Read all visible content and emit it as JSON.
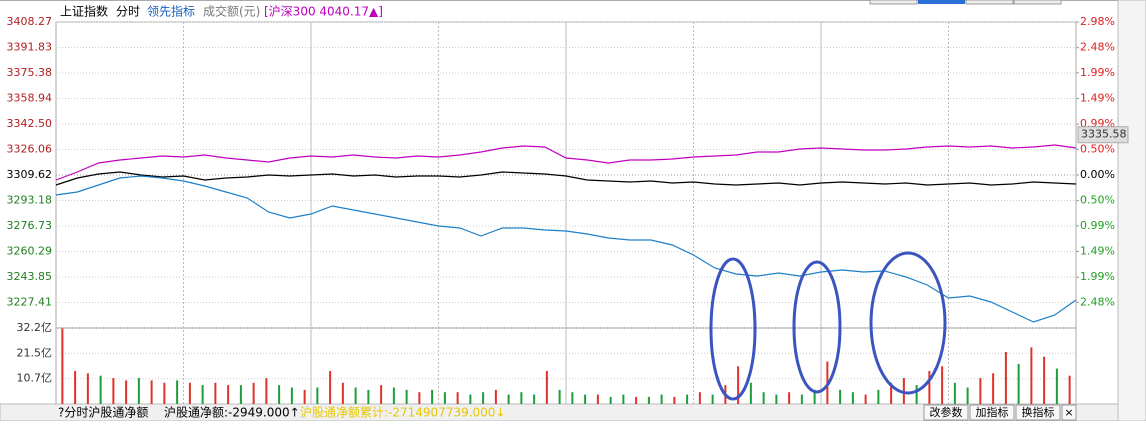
{
  "toolbar": {
    "index": "上证指数",
    "mode": "分时",
    "indicator": "领先指标",
    "volume_unit": "成交额(元)",
    "compare": "[沪深300 4040.17▲]"
  },
  "chart_data": {
    "type": "line",
    "ylim": [
      3210.97,
      3408.27
    ],
    "yticks": [
      3408.27,
      3391.83,
      3375.38,
      3358.94,
      {
        "value": 3342.5,
        "label": "3342.50"
      },
      3326.06,
      3309.62,
      3293.18,
      3276.73,
      3260.29,
      3243.85,
      3227.41
    ],
    "y2lim": [
      -2.98,
      2.98
    ],
    "y2ticks": [
      {
        "value": 2.98,
        "label": "2.98%"
      },
      {
        "value": 2.48,
        "label": "2.48%"
      },
      {
        "value": 1.99,
        "label": "1.99%"
      },
      {
        "value": 1.49,
        "label": "1.49%"
      },
      {
        "value": 0.99,
        "label": "0.99%"
      },
      {
        "value": 0.5,
        "label": "0.50%"
      },
      {
        "value": 0,
        "label": "0.00%"
      },
      {
        "value": -0.5,
        "label": "0.50%"
      },
      {
        "value": -0.99,
        "label": "0.99%"
      },
      {
        "value": -1.49,
        "label": "1.49%"
      },
      {
        "value": -1.99,
        "label": "1.99%"
      },
      {
        "value": -2.48,
        "label": "2.48%"
      }
    ],
    "current_price": 3335.58,
    "grid": true,
    "series": [
      {
        "color": "#c000c0",
        "values": [
          3306.39,
          3311.55,
          3317.35,
          3319.29,
          3320.58,
          3321.87,
          3321.22,
          3322.51,
          3320.58,
          3319.29,
          3318.0,
          3320.58,
          3321.87,
          3321.22,
          3322.51,
          3321.22,
          3320.58,
          3321.87,
          3321.22,
          3322.51,
          3324.45,
          3327.03,
          3328.31,
          3327.67,
          3320.58,
          3319.29,
          3317.35,
          3319.29,
          3319.29,
          3319.93,
          3321.22,
          3321.87,
          3322.51,
          3324.45,
          3324.45,
          3326.38,
          3327.03,
          3326.38,
          3325.74,
          3325.74,
          3326.38,
          3327.67,
          3328.31,
          3327.67,
          3328.31,
          3327.03,
          3327.67,
          3328.96,
          3327.03
        ]
      },
      {
        "color": "#000000",
        "values": [
          3303.17,
          3307.68,
          3310.26,
          3311.55,
          3309.62,
          3308.33,
          3308.97,
          3306.39,
          3307.68,
          3308.33,
          3309.62,
          3308.97,
          3309.62,
          3310.26,
          3308.97,
          3309.62,
          3308.33,
          3308.97,
          3308.97,
          3308.33,
          3309.62,
          3311.55,
          3310.91,
          3310.26,
          3308.97,
          3306.39,
          3305.75,
          3305.1,
          3305.75,
          3304.46,
          3305.1,
          3303.81,
          3303.17,
          3303.81,
          3304.46,
          3303.17,
          3304.46,
          3305.1,
          3304.46,
          3303.81,
          3304.46,
          3303.17,
          3303.81,
          3304.46,
          3303.17,
          3303.81,
          3305.1,
          3304.46,
          3303.81
        ]
      },
      {
        "color": "#1e7fc8",
        "values": [
          3296.72,
          3298.65,
          3303.17,
          3307.68,
          3308.97,
          3307.68,
          3305.75,
          3302.52,
          3298.65,
          3294.79,
          3285.76,
          3281.89,
          3284.47,
          3289.63,
          3287.05,
          3284.47,
          3281.89,
          3279.31,
          3276.73,
          3275.44,
          3270.28,
          3275.44,
          3275.44,
          3274.15,
          3273.51,
          3271.57,
          3268.99,
          3267.7,
          3267.7,
          3264.48,
          3258.03,
          3249.65,
          3245.78,
          3244.49,
          3246.43,
          3244.49,
          3247.07,
          3248.36,
          3247.07,
          3247.71,
          3243.85,
          3238.69,
          3230.31,
          3231.59,
          3227.73,
          3221.28,
          3214.83,
          3219.34,
          3229.02
        ]
      }
    ],
    "volume": {
      "ylim": [
        0,
        32.2
      ],
      "yticks": [
        {
          "value": 32.2,
          "label": "32.2亿"
        },
        {
          "value": 21.5,
          "label": "21.5亿"
        },
        {
          "value": 10.7,
          "label": "10.7亿"
        }
      ],
      "values": [
        32,
        14,
        13,
        12,
        11,
        10,
        11,
        10,
        9,
        10,
        9,
        8,
        9,
        8,
        8,
        9,
        11,
        8,
        7,
        6,
        7,
        14,
        9,
        7,
        6,
        8,
        7,
        6,
        5,
        6,
        5,
        5,
        4,
        5,
        6,
        4,
        5,
        4,
        14,
        6,
        5,
        4,
        4,
        3,
        4,
        3,
        3,
        4,
        3,
        4,
        5,
        4,
        8,
        16,
        9,
        5,
        4,
        5,
        4,
        6,
        18,
        6,
        5,
        4,
        6,
        9,
        11,
        8,
        14,
        16,
        9,
        7,
        11,
        13,
        22,
        17,
        24,
        20,
        15,
        12
      ],
      "colors": [
        "#e0302a",
        "#e0302a",
        "#e0302a",
        "#1c9c3a",
        "#e0302a",
        "#e0302a",
        "#1c9c3a",
        "#e0302a",
        "#e0302a",
        "#1c9c3a",
        "#e0302a",
        "#1c9c3a",
        "#e0302a",
        "#e0302a",
        "#1c9c3a",
        "#e0302a",
        "#e0302a",
        "#1c9c3a",
        "#1c9c3a",
        "#e0302a",
        "#1c9c3a",
        "#e0302a",
        "#e0302a",
        "#1c9c3a",
        "#1c9c3a",
        "#e0302a",
        "#1c9c3a",
        "#1c9c3a",
        "#e0302a",
        "#1c9c3a",
        "#1c9c3a",
        "#e0302a",
        "#1c9c3a",
        "#1c9c3a",
        "#e0302a",
        "#1c9c3a",
        "#1c9c3a",
        "#1c9c3a",
        "#e0302a",
        "#1c9c3a",
        "#1c9c3a",
        "#1c9c3a",
        "#e0302a",
        "#1c9c3a",
        "#1c9c3a",
        "#e0302a",
        "#1c9c3a",
        "#1c9c3a",
        "#e0302a",
        "#1c9c3a",
        "#e0302a",
        "#1c9c3a",
        "#e0302a",
        "#e0302a",
        "#1c9c3a",
        "#1c9c3a",
        "#1c9c3a",
        "#e0302a",
        "#1c9c3a",
        "#1c9c3a",
        "#e0302a",
        "#1c9c3a",
        "#1c9c3a",
        "#e0302a",
        "#1c9c3a",
        "#e0302a",
        "#e0302a",
        "#1c9c3a",
        "#e0302a",
        "#e0302a",
        "#1c9c3a",
        "#1c9c3a",
        "#e0302a",
        "#e0302a",
        "#e0302a",
        "#1c9c3a",
        "#e0302a",
        "#e0302a",
        "#1c9c3a",
        "#e0302a"
      ]
    }
  },
  "status_bar": {
    "indicator": "?分时沪股通净额",
    "net": "沪股通净额:-2949.000↑",
    "cumulative": "沪股通净额累计:-2714907739.000↓",
    "buttons": [
      "改参数",
      "加指标",
      "换指标",
      "×"
    ]
  }
}
